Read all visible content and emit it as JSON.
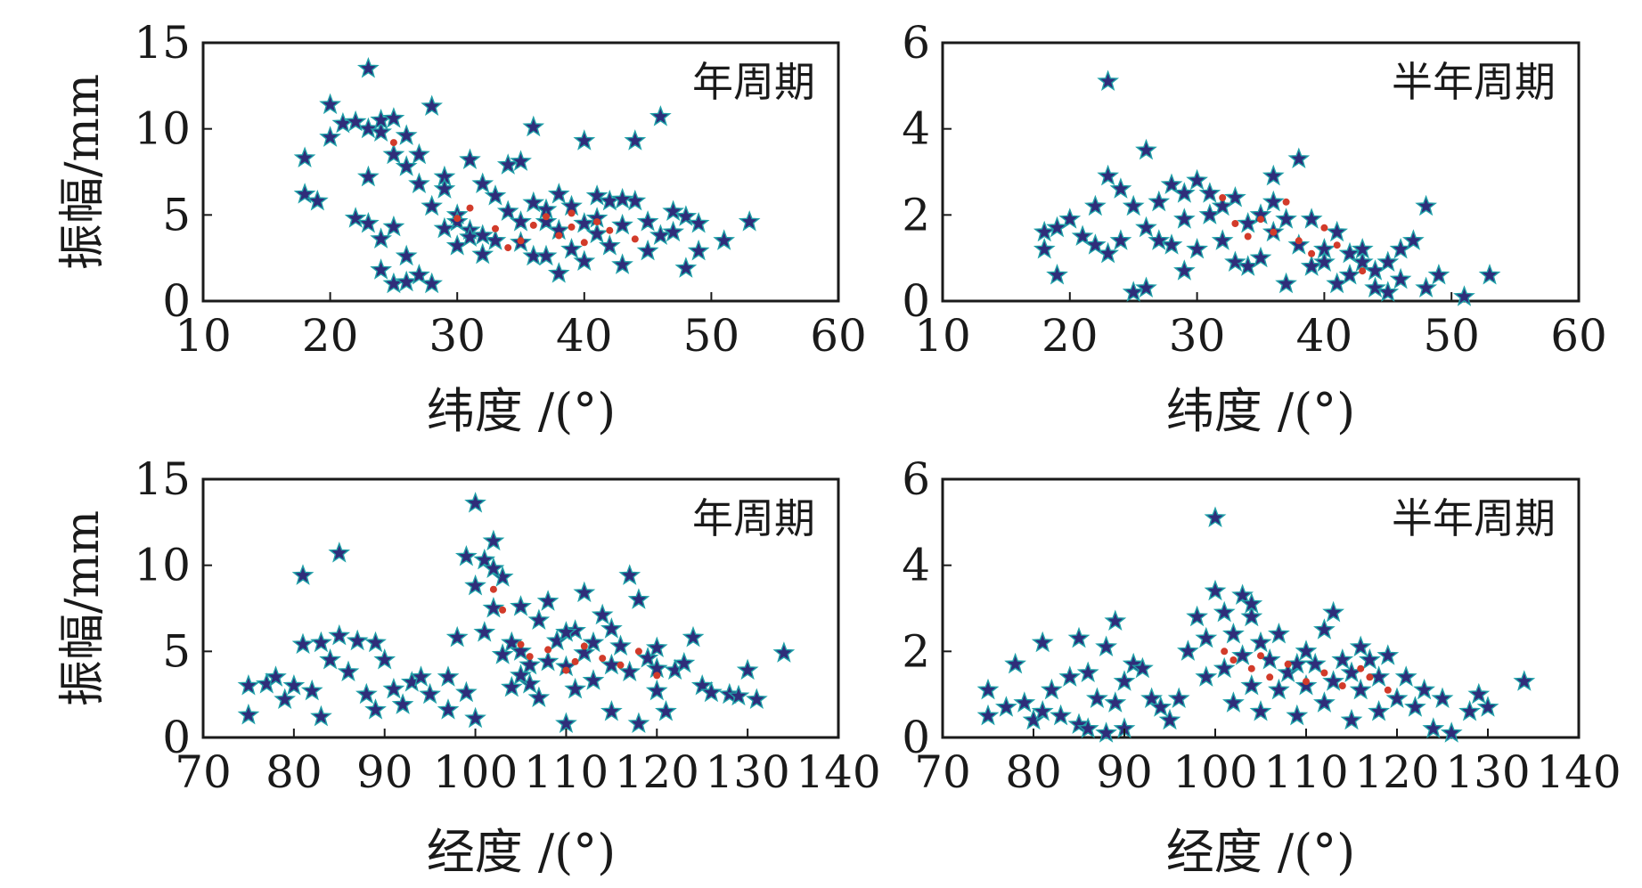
{
  "colors": {
    "star_fill": "#2f2d7a",
    "star_edge": "#1fa0a8",
    "highlight": "#d23b2a",
    "axis": "#1a1a1a"
  },
  "marker": "star",
  "chart_data": [
    {
      "type": "scatter",
      "annotation": "年周期",
      "xlabel": "纬度 /(°)",
      "ylabel": "振幅/mm",
      "xlim": [
        10,
        60
      ],
      "ylim": [
        0,
        15
      ],
      "xticks": [
        10,
        20,
        30,
        40,
        50,
        60
      ],
      "yticks": [
        0,
        5,
        10,
        15
      ],
      "grid": false,
      "points": [
        [
          18,
          8.3
        ],
        [
          18,
          6.2
        ],
        [
          19,
          5.8
        ],
        [
          20,
          11.4
        ],
        [
          20,
          9.5
        ],
        [
          21,
          10.3
        ],
        [
          22,
          4.8
        ],
        [
          23,
          4.5
        ],
        [
          23,
          13.5
        ],
        [
          23,
          7.2
        ],
        [
          23,
          10
        ],
        [
          24,
          9.8
        ],
        [
          24,
          10.5
        ],
        [
          25,
          10.6
        ],
        [
          25,
          8.5
        ],
        [
          25,
          1
        ],
        [
          26,
          1.1
        ],
        [
          26,
          9.6
        ],
        [
          26,
          7.8
        ],
        [
          27,
          6.8
        ],
        [
          27,
          1.5
        ],
        [
          28,
          1
        ],
        [
          28,
          11.3
        ],
        [
          28,
          5.5
        ],
        [
          29,
          7.2
        ],
        [
          29,
          6.5
        ],
        [
          30,
          5
        ],
        [
          30,
          4.6
        ],
        [
          30,
          3.2
        ],
        [
          31,
          8.2
        ],
        [
          31,
          4.1
        ],
        [
          32,
          6.8
        ],
        [
          32,
          2.7
        ],
        [
          33,
          3.5
        ],
        [
          34,
          7.9
        ],
        [
          34,
          5.2
        ],
        [
          35,
          4.6
        ],
        [
          35,
          8.1
        ],
        [
          35,
          3.4
        ],
        [
          36,
          10.1
        ],
        [
          36,
          2.6
        ],
        [
          37,
          5.3
        ],
        [
          37,
          4.6
        ],
        [
          38,
          4.1
        ],
        [
          38,
          1.6
        ],
        [
          39,
          5.5
        ],
        [
          39,
          3
        ],
        [
          40,
          9.3
        ],
        [
          40,
          4.5
        ],
        [
          40,
          2.3
        ],
        [
          41,
          6.1
        ],
        [
          41,
          3.9
        ],
        [
          42,
          5.8
        ],
        [
          42,
          3.2
        ],
        [
          43,
          4.4
        ],
        [
          43,
          2.1
        ],
        [
          44,
          9.3
        ],
        [
          44,
          5.8
        ],
        [
          45,
          4.6
        ],
        [
          45,
          2.9
        ],
        [
          46,
          10.7
        ],
        [
          46,
          3.8
        ],
        [
          47,
          4
        ],
        [
          47,
          5.2
        ],
        [
          48,
          4.9
        ],
        [
          48,
          1.9
        ],
        [
          49,
          4.5
        ],
        [
          49,
          2.9
        ],
        [
          51,
          3.5
        ],
        [
          53,
          4.6
        ],
        [
          24,
          3.6
        ],
        [
          25,
          4.3
        ],
        [
          27,
          8.5
        ],
        [
          29,
          4.2
        ],
        [
          31,
          3.7
        ],
        [
          33,
          6.1
        ],
        [
          36,
          5.7
        ],
        [
          38,
          6.2
        ],
        [
          41,
          4.8
        ],
        [
          43,
          5.9
        ],
        [
          22,
          10.4
        ],
        [
          24,
          1.8
        ],
        [
          26,
          2.6
        ],
        [
          32,
          3.8
        ],
        [
          37,
          2.6
        ]
      ],
      "highlights": [
        [
          30,
          4.8
        ],
        [
          33,
          4.2
        ],
        [
          36,
          4.4
        ],
        [
          38,
          3.8
        ],
        [
          39,
          4.3
        ],
        [
          40,
          3.4
        ],
        [
          41,
          4.6
        ],
        [
          44,
          3.6
        ],
        [
          34,
          3.1
        ],
        [
          37,
          4.9
        ],
        [
          25,
          9.2
        ],
        [
          31,
          5.4
        ],
        [
          42,
          4.1
        ],
        [
          35,
          3.5
        ],
        [
          39,
          5.1
        ]
      ]
    },
    {
      "type": "scatter",
      "annotation": "半年周期",
      "xlabel": "纬度 /(°)",
      "ylabel": "",
      "xlim": [
        10,
        60
      ],
      "ylim": [
        0,
        6
      ],
      "xticks": [
        10,
        20,
        30,
        40,
        50,
        60
      ],
      "yticks": [
        0,
        2,
        4,
        6
      ],
      "grid": false,
      "points": [
        [
          18,
          1.6
        ],
        [
          18,
          1.2
        ],
        [
          19,
          0.6
        ],
        [
          20,
          1.9
        ],
        [
          21,
          1.5
        ],
        [
          22,
          2.2
        ],
        [
          23,
          2.9
        ],
        [
          23,
          5.1
        ],
        [
          23,
          1.1
        ],
        [
          24,
          1.4
        ],
        [
          24,
          2.6
        ],
        [
          25,
          2.2
        ],
        [
          25,
          0.2
        ],
        [
          26,
          3.5
        ],
        [
          26,
          1.7
        ],
        [
          26,
          0.3
        ],
        [
          27,
          2.3
        ],
        [
          28,
          2.7
        ],
        [
          28,
          1.3
        ],
        [
          29,
          2.5
        ],
        [
          29,
          1.9
        ],
        [
          30,
          2.8
        ],
        [
          30,
          1.2
        ],
        [
          31,
          2
        ],
        [
          31,
          2.5
        ],
        [
          32,
          1.4
        ],
        [
          33,
          2.4
        ],
        [
          33,
          0.9
        ],
        [
          34,
          1.8
        ],
        [
          34,
          0.8
        ],
        [
          35,
          2
        ],
        [
          35,
          1
        ],
        [
          36,
          2.9
        ],
        [
          36,
          1.6
        ],
        [
          37,
          1.9
        ],
        [
          37,
          0.4
        ],
        [
          38,
          3.3
        ],
        [
          38,
          1.3
        ],
        [
          39,
          1.9
        ],
        [
          39,
          0.8
        ],
        [
          40,
          1.2
        ],
        [
          41,
          1.6
        ],
        [
          41,
          0.4
        ],
        [
          42,
          1.1
        ],
        [
          42,
          0.6
        ],
        [
          43,
          0.9
        ],
        [
          44,
          0.7
        ],
        [
          44,
          0.3
        ],
        [
          45,
          0.9
        ],
        [
          46,
          0.5
        ],
        [
          46,
          1.2
        ],
        [
          47,
          1.4
        ],
        [
          48,
          2.2
        ],
        [
          48,
          0.3
        ],
        [
          49,
          0.6
        ],
        [
          51,
          0.1
        ],
        [
          53,
          0.6
        ],
        [
          19,
          1.7
        ],
        [
          27,
          1.4
        ],
        [
          32,
          2.2
        ],
        [
          36,
          2.3
        ],
        [
          40,
          0.9
        ],
        [
          43,
          1.2
        ],
        [
          45,
          0.2
        ],
        [
          22,
          1.3
        ],
        [
          29,
          0.7
        ]
      ],
      "highlights": [
        [
          32,
          2.4
        ],
        [
          33,
          1.8
        ],
        [
          36,
          1.6
        ],
        [
          38,
          1.4
        ],
        [
          39,
          1.1
        ],
        [
          40,
          1.7
        ],
        [
          41,
          1.3
        ],
        [
          34,
          1.5
        ],
        [
          37,
          2.3
        ],
        [
          43,
          0.7
        ],
        [
          35,
          1.9
        ]
      ]
    },
    {
      "type": "scatter",
      "annotation": "年周期",
      "xlabel": "经度 /(°)",
      "ylabel": "振幅/mm",
      "xlim": [
        70,
        140
      ],
      "ylim": [
        0,
        15
      ],
      "xticks": [
        70,
        80,
        90,
        100,
        110,
        120,
        130,
        140
      ],
      "yticks": [
        0,
        5,
        10,
        15
      ],
      "grid": false,
      "points": [
        [
          75,
          1.3
        ],
        [
          75,
          3
        ],
        [
          77,
          3.1
        ],
        [
          78,
          3.5
        ],
        [
          79,
          2.2
        ],
        [
          80,
          3
        ],
        [
          81,
          9.4
        ],
        [
          81,
          5.4
        ],
        [
          82,
          2.7
        ],
        [
          83,
          5.5
        ],
        [
          83,
          1.2
        ],
        [
          84,
          4.5
        ],
        [
          85,
          10.7
        ],
        [
          85,
          5.9
        ],
        [
          86,
          3.8
        ],
        [
          87,
          5.6
        ],
        [
          88,
          2.5
        ],
        [
          89,
          1.6
        ],
        [
          89,
          5.5
        ],
        [
          90,
          4.5
        ],
        [
          91,
          2.8
        ],
        [
          92,
          1.9
        ],
        [
          93,
          3.2
        ],
        [
          94,
          3.5
        ],
        [
          95,
          2.5
        ],
        [
          97,
          3.5
        ],
        [
          98,
          5.8
        ],
        [
          99,
          10.5
        ],
        [
          99,
          2.6
        ],
        [
          100,
          13.6
        ],
        [
          100,
          1.1
        ],
        [
          101,
          10.3
        ],
        [
          101,
          6.1
        ],
        [
          102,
          11.4
        ],
        [
          102,
          7.5
        ],
        [
          103,
          9.3
        ],
        [
          103,
          4.8
        ],
        [
          104,
          5.5
        ],
        [
          104,
          2.9
        ],
        [
          105,
          7.6
        ],
        [
          105,
          5
        ],
        [
          106,
          4.2
        ],
        [
          106,
          3.1
        ],
        [
          107,
          6.8
        ],
        [
          107,
          2.3
        ],
        [
          108,
          7.9
        ],
        [
          108,
          4.4
        ],
        [
          109,
          5.6
        ],
        [
          110,
          0.8
        ],
        [
          110,
          4.1
        ],
        [
          111,
          6.2
        ],
        [
          111,
          2.8
        ],
        [
          112,
          8.4
        ],
        [
          112,
          4.9
        ],
        [
          113,
          5.5
        ],
        [
          113,
          3.3
        ],
        [
          114,
          7.1
        ],
        [
          115,
          4.2
        ],
        [
          115,
          1.5
        ],
        [
          116,
          5.3
        ],
        [
          117,
          9.4
        ],
        [
          117,
          3.8
        ],
        [
          118,
          0.8
        ],
        [
          118,
          8
        ],
        [
          119,
          4.6
        ],
        [
          120,
          2.7
        ],
        [
          120,
          5.2
        ],
        [
          121,
          1.5
        ],
        [
          122,
          3.9
        ],
        [
          123,
          4.3
        ],
        [
          124,
          5.8
        ],
        [
          125,
          3
        ],
        [
          126,
          2.6
        ],
        [
          128,
          2.5
        ],
        [
          129,
          2.4
        ],
        [
          130,
          3.9
        ],
        [
          131,
          2.2
        ],
        [
          134,
          4.9
        ],
        [
          100,
          8.8
        ],
        [
          102,
          9.8
        ],
        [
          105,
          3.6
        ],
        [
          110,
          6.1
        ],
        [
          115,
          6.3
        ],
        [
          120,
          4
        ],
        [
          97,
          1.6
        ]
      ],
      "highlights": [
        [
          103,
          7.4
        ],
        [
          105,
          5.4
        ],
        [
          106,
          4.7
        ],
        [
          108,
          5.1
        ],
        [
          110,
          3.9
        ],
        [
          112,
          5.3
        ],
        [
          114,
          4.6
        ],
        [
          116,
          4.2
        ],
        [
          118,
          5
        ],
        [
          120,
          3.6
        ],
        [
          102,
          8.6
        ],
        [
          111,
          4.4
        ]
      ]
    },
    {
      "type": "scatter",
      "annotation": "半年周期",
      "xlabel": "经度 /(°)",
      "ylabel": "",
      "xlim": [
        70,
        140
      ],
      "ylim": [
        0,
        6
      ],
      "xticks": [
        70,
        80,
        90,
        100,
        110,
        120,
        130,
        140
      ],
      "yticks": [
        0,
        2,
        4,
        6
      ],
      "grid": false,
      "points": [
        [
          75,
          0.5
        ],
        [
          75,
          1.1
        ],
        [
          77,
          0.7
        ],
        [
          78,
          1.7
        ],
        [
          79,
          0.8
        ],
        [
          80,
          0.4
        ],
        [
          81,
          0.6
        ],
        [
          81,
          2.2
        ],
        [
          82,
          1.1
        ],
        [
          83,
          0.5
        ],
        [
          84,
          1.4
        ],
        [
          85,
          0.3
        ],
        [
          85,
          2.3
        ],
        [
          86,
          1.5
        ],
        [
          86,
          0.2
        ],
        [
          87,
          0.9
        ],
        [
          88,
          2.1
        ],
        [
          88,
          0.1
        ],
        [
          89,
          2.7
        ],
        [
          89,
          0.8
        ],
        [
          90,
          1.3
        ],
        [
          90,
          0.2
        ],
        [
          91,
          1.7
        ],
        [
          92,
          1.6
        ],
        [
          93,
          0.9
        ],
        [
          94,
          0.7
        ],
        [
          95,
          0.4
        ],
        [
          96,
          0.9
        ],
        [
          97,
          2
        ],
        [
          98,
          2.8
        ],
        [
          99,
          1.4
        ],
        [
          100,
          5.1
        ],
        [
          100,
          3.4
        ],
        [
          101,
          2.9
        ],
        [
          101,
          1.6
        ],
        [
          102,
          2.4
        ],
        [
          102,
          0.8
        ],
        [
          103,
          3.3
        ],
        [
          103,
          1.9
        ],
        [
          104,
          2.8
        ],
        [
          104,
          1.2
        ],
        [
          105,
          2.2
        ],
        [
          105,
          0.6
        ],
        [
          106,
          1.8
        ],
        [
          107,
          2.4
        ],
        [
          107,
          1.1
        ],
        [
          108,
          1.5
        ],
        [
          109,
          0.5
        ],
        [
          110,
          2
        ],
        [
          110,
          1.2
        ],
        [
          111,
          1.7
        ],
        [
          112,
          2.5
        ],
        [
          112,
          0.8
        ],
        [
          113,
          2.9
        ],
        [
          113,
          1.3
        ],
        [
          114,
          1.8
        ],
        [
          115,
          0.4
        ],
        [
          115,
          1.5
        ],
        [
          116,
          1.1
        ],
        [
          117,
          1.8
        ],
        [
          118,
          0.6
        ],
        [
          118,
          1.4
        ],
        [
          119,
          1.9
        ],
        [
          120,
          0.9
        ],
        [
          121,
          1.4
        ],
        [
          122,
          0.7
        ],
        [
          123,
          1.1
        ],
        [
          124,
          0.2
        ],
        [
          125,
          0.9
        ],
        [
          126,
          0.1
        ],
        [
          128,
          0.6
        ],
        [
          129,
          1
        ],
        [
          130,
          0.7
        ],
        [
          134,
          1.3
        ],
        [
          99,
          2.3
        ],
        [
          104,
          3.1
        ],
        [
          109,
          1.7
        ],
        [
          116,
          2.1
        ]
      ],
      "highlights": [
        [
          101,
          2
        ],
        [
          102,
          1.8
        ],
        [
          104,
          1.6
        ],
        [
          106,
          1.4
        ],
        [
          108,
          1.7
        ],
        [
          110,
          1.3
        ],
        [
          112,
          1.5
        ],
        [
          114,
          1.2
        ],
        [
          116,
          1.6
        ],
        [
          117,
          1.4
        ],
        [
          119,
          1.1
        ],
        [
          105,
          1.9
        ]
      ]
    }
  ]
}
